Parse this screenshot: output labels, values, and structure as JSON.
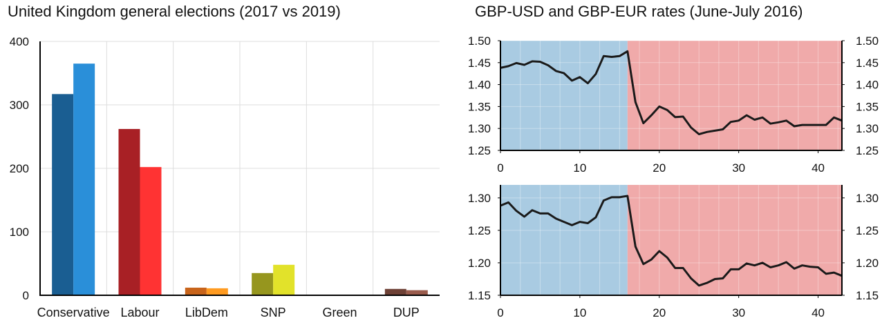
{
  "chart_data": [
    {
      "type": "bar",
      "title": "United Kingdom general elections (2017 vs 2019)",
      "categories": [
        "Conservative",
        "Labour",
        "LibDem",
        "SNP",
        "Green",
        "DUP"
      ],
      "series": [
        {
          "values": [
            317,
            262,
            12,
            35,
            1,
            10
          ],
          "colors": [
            "#1a5e92",
            "#a82025",
            "#c8641b",
            "#96961e",
            "#5e8a3c",
            "#6e4136"
          ]
        },
        {
          "values": [
            365,
            202,
            11,
            48,
            1,
            8
          ],
          "colors": [
            "#2a8fd9",
            "#ff3333",
            "#ff9b21",
            "#e2e22a",
            "#8cc447",
            "#9a5c4d"
          ]
        }
      ],
      "yticks": [
        "0",
        "100",
        "200",
        "300",
        "400"
      ],
      "ylim": [
        0,
        400
      ],
      "grid": true
    },
    {
      "type": "line",
      "title": "GBP-USD and GBP-EUR rates (June-July 2016)",
      "xticks": [
        "0",
        "10",
        "20",
        "30",
        "40"
      ],
      "xlim": [
        0,
        43
      ],
      "shaded_regions": [
        {
          "from": 0,
          "to": 16,
          "color": "#a9cbe2"
        },
        {
          "from": 16,
          "to": 43,
          "color": "#f0aaaa"
        }
      ],
      "panels": [
        {
          "ylim": [
            1.25,
            1.5
          ],
          "yticks": [
            "1.25",
            "1.30",
            "1.35",
            "1.40",
            "1.45",
            "1.50"
          ],
          "x": [
            0,
            1,
            2,
            3,
            4,
            5,
            6,
            7,
            8,
            9,
            10,
            11,
            12,
            13,
            14,
            15,
            16,
            17,
            18,
            19,
            20,
            21,
            22,
            23,
            24,
            25,
            26,
            27,
            28,
            29,
            30,
            31,
            32,
            33,
            34,
            35,
            36,
            37,
            38,
            39,
            40,
            41,
            42,
            43
          ],
          "values": [
            1.438,
            1.442,
            1.449,
            1.445,
            1.453,
            1.452,
            1.444,
            1.431,
            1.426,
            1.409,
            1.417,
            1.403,
            1.424,
            1.465,
            1.463,
            1.465,
            1.476,
            1.36,
            1.312,
            1.33,
            1.35,
            1.342,
            1.326,
            1.327,
            1.302,
            1.287,
            1.292,
            1.295,
            1.298,
            1.315,
            1.318,
            1.33,
            1.32,
            1.325,
            1.311,
            1.314,
            1.318,
            1.305,
            1.308,
            1.308,
            1.308,
            1.308,
            1.325,
            1.318
          ]
        },
        {
          "ylim": [
            1.15,
            1.32
          ],
          "yticks": [
            "1.15",
            "1.20",
            "1.25",
            "1.30"
          ],
          "x": [
            0,
            1,
            2,
            3,
            4,
            5,
            6,
            7,
            8,
            9,
            10,
            11,
            12,
            13,
            14,
            15,
            16,
            17,
            18,
            19,
            20,
            21,
            22,
            23,
            24,
            25,
            26,
            27,
            28,
            29,
            30,
            31,
            32,
            33,
            34,
            35,
            36,
            37,
            38,
            39,
            40,
            41,
            42,
            43
          ],
          "values": [
            1.288,
            1.293,
            1.28,
            1.271,
            1.281,
            1.276,
            1.276,
            1.268,
            1.263,
            1.258,
            1.263,
            1.261,
            1.27,
            1.296,
            1.301,
            1.301,
            1.303,
            1.225,
            1.198,
            1.205,
            1.218,
            1.208,
            1.192,
            1.192,
            1.176,
            1.165,
            1.169,
            1.175,
            1.176,
            1.19,
            1.19,
            1.199,
            1.196,
            1.2,
            1.193,
            1.196,
            1.201,
            1.191,
            1.196,
            1.194,
            1.193,
            1.183,
            1.185,
            1.18
          ]
        }
      ]
    }
  ]
}
